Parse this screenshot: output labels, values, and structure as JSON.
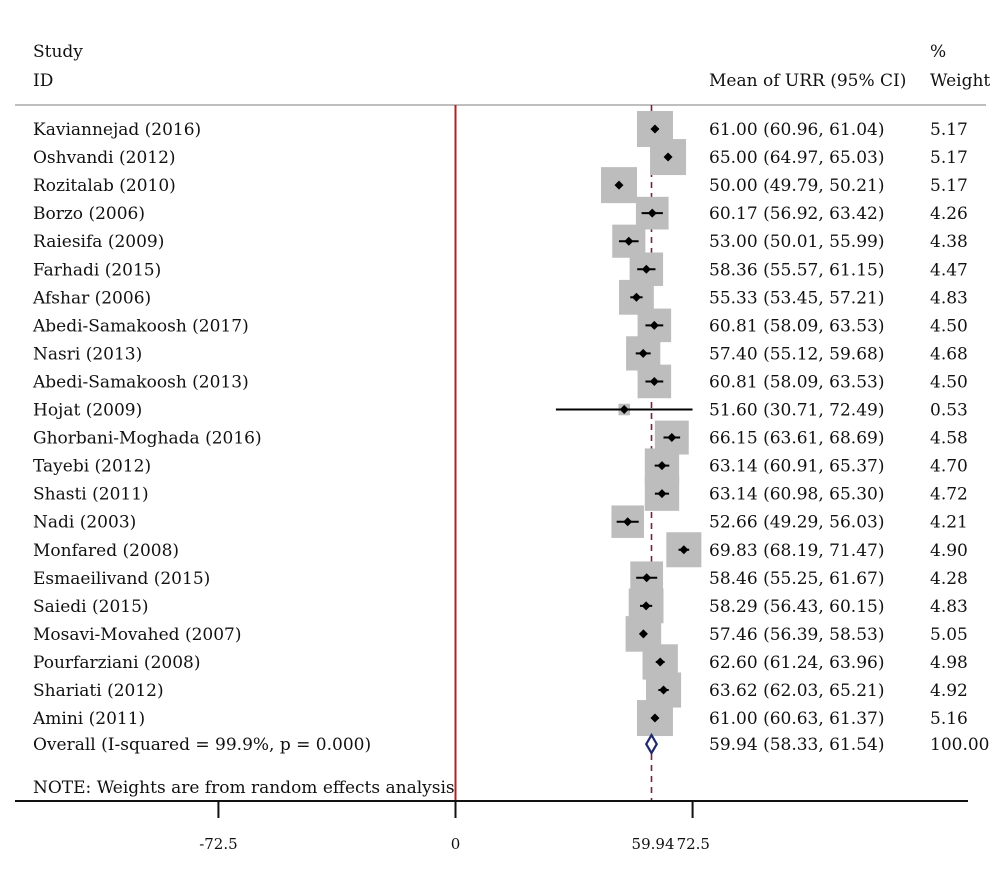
{
  "header": {
    "study_line1": "Study",
    "study_line2": "ID",
    "ci_header": "Mean of URR (95% CI)",
    "weight_line1": "%",
    "weight_line2": "Weight"
  },
  "note": "NOTE: Weights are from random effects analysis",
  "chart_data": {
    "type": "forest",
    "x_ticks": [
      -72.5,
      0,
      59.94,
      72.5
    ],
    "x_tick_labels": [
      "-72.5",
      "0",
      "59.94",
      "72.5"
    ],
    "reference_line": 0,
    "overall_line": 59.94,
    "studies": [
      {
        "label": "Kaviannejad (2016)",
        "mean": 61.0,
        "lo": 60.96,
        "hi": 61.04,
        "ci_text": "61.00 (60.96, 61.04)",
        "weight": 5.17,
        "weight_text": "5.17"
      },
      {
        "label": "Oshvandi (2012)",
        "mean": 65.0,
        "lo": 64.97,
        "hi": 65.03,
        "ci_text": "65.00 (64.97, 65.03)",
        "weight": 5.17,
        "weight_text": "5.17"
      },
      {
        "label": "Rozitalab (2010)",
        "mean": 50.0,
        "lo": 49.79,
        "hi": 50.21,
        "ci_text": "50.00 (49.79, 50.21)",
        "weight": 5.17,
        "weight_text": "5.17"
      },
      {
        "label": "Borzo (2006)",
        "mean": 60.17,
        "lo": 56.92,
        "hi": 63.42,
        "ci_text": "60.17 (56.92, 63.42)",
        "weight": 4.26,
        "weight_text": "4.26"
      },
      {
        "label": "Raiesifa (2009)",
        "mean": 53.0,
        "lo": 50.01,
        "hi": 55.99,
        "ci_text": "53.00 (50.01, 55.99)",
        "weight": 4.38,
        "weight_text": "4.38"
      },
      {
        "label": "Farhadi (2015)",
        "mean": 58.36,
        "lo": 55.57,
        "hi": 61.15,
        "ci_text": "58.36 (55.57, 61.15)",
        "weight": 4.47,
        "weight_text": "4.47"
      },
      {
        "label": "Afshar (2006)",
        "mean": 55.33,
        "lo": 53.45,
        "hi": 57.21,
        "ci_text": "55.33 (53.45, 57.21)",
        "weight": 4.83,
        "weight_text": "4.83"
      },
      {
        "label": "Abedi-Samakoosh (2017)",
        "mean": 60.81,
        "lo": 58.09,
        "hi": 63.53,
        "ci_text": "60.81 (58.09, 63.53)",
        "weight": 4.5,
        "weight_text": "4.50"
      },
      {
        "label": "Nasri (2013)",
        "mean": 57.4,
        "lo": 55.12,
        "hi": 59.68,
        "ci_text": "57.40 (55.12, 59.68)",
        "weight": 4.68,
        "weight_text": "4.68"
      },
      {
        "label": "Abedi-Samakoosh (2013)",
        "mean": 60.81,
        "lo": 58.09,
        "hi": 63.53,
        "ci_text": "60.81 (58.09, 63.53)",
        "weight": 4.5,
        "weight_text": "4.50"
      },
      {
        "label": "Hojat (2009)",
        "mean": 51.6,
        "lo": 30.71,
        "hi": 72.49,
        "ci_text": "51.60 (30.71, 72.49)",
        "weight": 0.53,
        "weight_text": "0.53"
      },
      {
        "label": "Ghorbani-Moghada (2016)",
        "mean": 66.15,
        "lo": 63.61,
        "hi": 68.69,
        "ci_text": "66.15 (63.61, 68.69)",
        "weight": 4.58,
        "weight_text": "4.58"
      },
      {
        "label": "Tayebi (2012)",
        "mean": 63.14,
        "lo": 60.91,
        "hi": 65.37,
        "ci_text": "63.14 (60.91, 65.37)",
        "weight": 4.7,
        "weight_text": "4.70"
      },
      {
        "label": "Shasti (2011)",
        "mean": 63.14,
        "lo": 60.98,
        "hi": 65.3,
        "ci_text": "63.14 (60.98, 65.30)",
        "weight": 4.72,
        "weight_text": "4.72"
      },
      {
        "label": "Nadi (2003)",
        "mean": 52.66,
        "lo": 49.29,
        "hi": 56.03,
        "ci_text": "52.66 (49.29, 56.03)",
        "weight": 4.21,
        "weight_text": "4.21"
      },
      {
        "label": "Monfared (2008)",
        "mean": 69.83,
        "lo": 68.19,
        "hi": 71.47,
        "ci_text": "69.83 (68.19, 71.47)",
        "weight": 4.9,
        "weight_text": "4.90"
      },
      {
        "label": "Esmaeilivand (2015)",
        "mean": 58.46,
        "lo": 55.25,
        "hi": 61.67,
        "ci_text": "58.46 (55.25, 61.67)",
        "weight": 4.28,
        "weight_text": "4.28"
      },
      {
        "label": "Saiedi (2015)",
        "mean": 58.29,
        "lo": 56.43,
        "hi": 60.15,
        "ci_text": "58.29 (56.43, 60.15)",
        "weight": 4.83,
        "weight_text": "4.83"
      },
      {
        "label": "Mosavi-Movahed (2007)",
        "mean": 57.46,
        "lo": 56.39,
        "hi": 58.53,
        "ci_text": "57.46 (56.39, 58.53)",
        "weight": 5.05,
        "weight_text": "5.05"
      },
      {
        "label": "Pourfarziani (2008)",
        "mean": 62.6,
        "lo": 61.24,
        "hi": 63.96,
        "ci_text": "62.60 (61.24, 63.96)",
        "weight": 4.98,
        "weight_text": "4.98"
      },
      {
        "label": "Shariati (2012)",
        "mean": 63.62,
        "lo": 62.03,
        "hi": 65.21,
        "ci_text": "63.62 (62.03, 65.21)",
        "weight": 4.92,
        "weight_text": "4.92"
      },
      {
        "label": "Amini (2011)",
        "mean": 61.0,
        "lo": 60.63,
        "hi": 61.37,
        "ci_text": "61.00 (60.63, 61.37)",
        "weight": 5.16,
        "weight_text": "5.16"
      }
    ],
    "overall": {
      "label": "Overall  (I-squared = 99.9%, p = 0.000)",
      "mean": 59.94,
      "lo": 58.33,
      "hi": 61.54,
      "ci_text": "59.94 (58.33, 61.54)",
      "weight_text": "100.00"
    },
    "colors": {
      "reference_line": "#b22222",
      "overall_line": "#7a1f3d",
      "diamond": "#1f2a6e",
      "box": "#bdbdbd",
      "marker": "#000000"
    }
  }
}
